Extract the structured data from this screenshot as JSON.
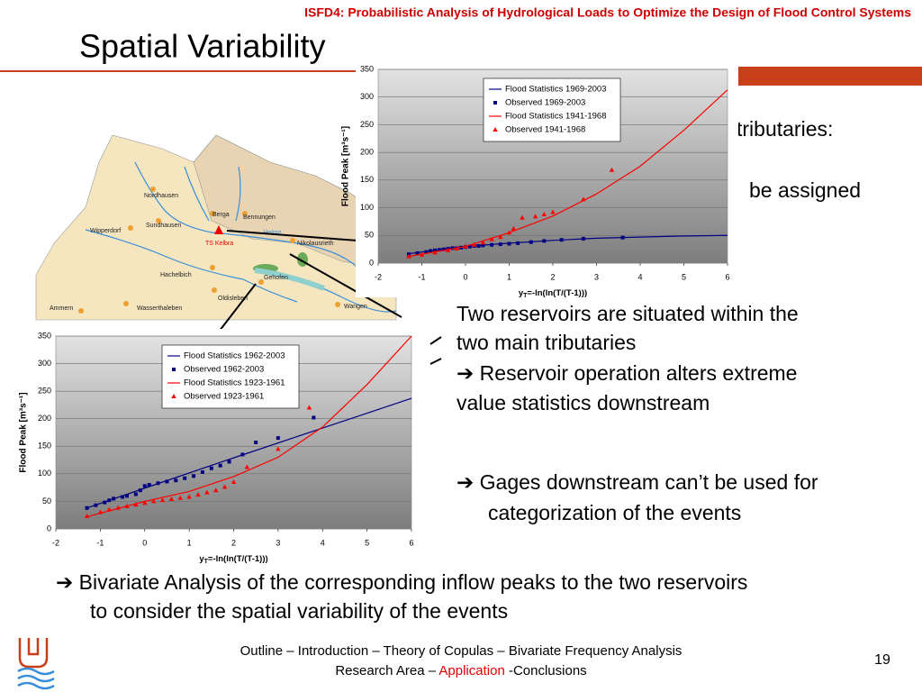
{
  "header": {
    "conference": "ISFD4: Probabilistic Analysis of Hydrological Loads to Optimize the Design of Flood Control Systems",
    "title": "Spatial Variability"
  },
  "fragments": [
    "tributaries:",
    "be assigned"
  ],
  "map": {
    "labels": [
      "Nordhausen",
      "Sundhausen",
      "Wipperdorf",
      "Berga",
      "Bennungen",
      "TS Kelbra",
      "Nikolausrieth",
      "Hachelbich",
      "Oldisleben",
      "Gehofen",
      "Wasserthaleben",
      "Ammern",
      "Wangen",
      "Helme"
    ]
  },
  "chart_data": [
    {
      "type": "line",
      "y_label": "Flood Peak [m³s⁻¹]",
      "x_label": {
        "main": "y",
        "sub": "T",
        "rest": "=-ln(ln(T/(T-1)))"
      },
      "xlim": [
        -2,
        6
      ],
      "xticks": [
        -2,
        -1,
        0,
        1,
        2,
        3,
        4,
        5,
        6
      ],
      "ylim": [
        0,
        350
      ],
      "yticks": [
        0,
        50,
        100,
        150,
        200,
        250,
        300,
        350
      ],
      "grid": true,
      "series": [
        {
          "name": "Flood Statistics 1969-2003",
          "color": "#000080",
          "marker": "line",
          "x": [
            -1.3,
            0,
            1,
            2,
            3,
            4,
            5,
            6
          ],
          "values": [
            17,
            30,
            36,
            41,
            45,
            47,
            49,
            50
          ]
        },
        {
          "name": "Observed 1969-2003",
          "color": "#000080",
          "marker": "square",
          "x": [
            -1.3,
            -1.1,
            -0.9,
            -0.8,
            -0.7,
            -0.6,
            -0.5,
            -0.4,
            -0.3,
            -0.2,
            -0.1,
            0,
            0.1,
            0.2,
            0.3,
            0.4,
            0.6,
            0.8,
            1.0,
            1.2,
            1.5,
            1.8,
            2.2,
            2.7,
            3.6
          ],
          "values": [
            16,
            18,
            20,
            22,
            23,
            24,
            25,
            26,
            27,
            27,
            28,
            29,
            30,
            31,
            31,
            32,
            33,
            34,
            35,
            36,
            38,
            40,
            42,
            44,
            46
          ]
        },
        {
          "name": "Flood Statistics 1941-1968",
          "color": "#ff0000",
          "marker": "line",
          "x": [
            -1.3,
            0,
            1,
            2,
            3,
            4,
            5,
            6
          ],
          "values": [
            12,
            30,
            55,
            85,
            125,
            175,
            240,
            313
          ]
        },
        {
          "name": "Observed 1941-1968",
          "color": "#ff0000",
          "marker": "triangle",
          "x": [
            -1.3,
            -1.0,
            -0.7,
            -0.4,
            -0.2,
            0,
            0.2,
            0.4,
            0.6,
            0.8,
            1.0,
            1.1,
            1.3,
            1.6,
            1.8,
            2.0,
            2.7,
            3.35
          ],
          "values": [
            12,
            15,
            19,
            23,
            26,
            30,
            33,
            37,
            43,
            47,
            55,
            62,
            82,
            84,
            88,
            92,
            115,
            168
          ]
        }
      ]
    },
    {
      "type": "line",
      "y_label": "Flood Peak [m³s⁻¹]",
      "x_label": {
        "main": "y",
        "sub": "T",
        "rest": "=-ln(ln(T/(T-1)))"
      },
      "xlim": [
        -2,
        6
      ],
      "xticks": [
        -2,
        -1,
        0,
        1,
        2,
        3,
        4,
        5,
        6
      ],
      "ylim": [
        0,
        350
      ],
      "yticks": [
        0,
        50,
        100,
        150,
        200,
        250,
        300,
        350
      ],
      "grid": true,
      "series": [
        {
          "name": "Flood Statistics 1962-2003",
          "color": "#000080",
          "marker": "line",
          "x": [
            -1.3,
            0,
            2,
            4,
            6
          ],
          "values": [
            38,
            74,
            129,
            183,
            237
          ]
        },
        {
          "name": "Observed 1962-2003",
          "color": "#000080",
          "marker": "square",
          "x": [
            -1.3,
            -1.1,
            -0.9,
            -0.8,
            -0.7,
            -0.5,
            -0.4,
            -0.2,
            -0.1,
            0,
            0.1,
            0.3,
            0.5,
            0.7,
            0.9,
            1.1,
            1.3,
            1.5,
            1.7,
            1.9,
            2.2,
            2.5,
            3.0,
            3.8
          ],
          "values": [
            38,
            43,
            48,
            52,
            55,
            58,
            60,
            63,
            70,
            78,
            80,
            83,
            86,
            88,
            92,
            96,
            103,
            110,
            115,
            122,
            135,
            157,
            165,
            202
          ]
        },
        {
          "name": "Flood Statistics 1923-1961",
          "color": "#ff0000",
          "marker": "line",
          "x": [
            -1.3,
            0,
            1,
            2,
            3,
            4,
            5,
            6
          ],
          "values": [
            22,
            50,
            68,
            95,
            130,
            185,
            262,
            350
          ]
        },
        {
          "name": "Observed 1923-1961",
          "color": "#ff0000",
          "marker": "triangle",
          "x": [
            -1.3,
            -1.0,
            -0.8,
            -0.6,
            -0.4,
            -0.2,
            0,
            0.2,
            0.4,
            0.6,
            0.8,
            1.0,
            1.2,
            1.4,
            1.6,
            1.8,
            2.0,
            2.3,
            3.0,
            3.7
          ],
          "values": [
            23,
            30,
            35,
            38,
            41,
            44,
            47,
            50,
            52,
            54,
            56,
            58,
            62,
            66,
            70,
            76,
            85,
            112,
            145,
            220
          ]
        }
      ]
    }
  ],
  "bullets": [
    {
      "lines": [
        "Two reservoirs are situated within the",
        "two main tributaries"
      ]
    },
    {
      "lines": [
        "➔ Reservoir operation alters extreme",
        "value statistics downstream"
      ]
    },
    {
      "lines": [
        "➔ Gages downstream can’t be used for",
        "categorization of the events"
      ]
    }
  ],
  "conclusion": {
    "lines": [
      "➔ Bivariate Analysis of the corresponding inflow peaks to the two reservoirs",
      "to consider the spatial variability of the events"
    ]
  },
  "footer": {
    "line1": "Outline – Introduction – Theory of Copulas – Bivariate Frequency Analysis",
    "line2": [
      "Research Area – ",
      "Application",
      " -Conclusions"
    ],
    "page": 19
  }
}
